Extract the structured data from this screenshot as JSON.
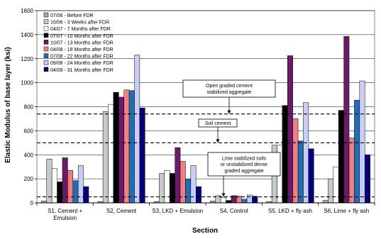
{
  "chart_data": {
    "type": "bar",
    "xlabel": "Section",
    "ylabel": "Elastic Modulus of base layer (ksi)",
    "ylim": [
      0,
      1600
    ],
    "yticks": [
      0,
      200,
      400,
      600,
      800,
      1000,
      1200,
      1400,
      1600
    ],
    "grid": "horizontal",
    "legend_position": "top-left",
    "categories": [
      "S1, Cement + Emulsion",
      "S2, Cement",
      "S3, LKD + Emulsion",
      "S4, Control",
      "S5, LKD + fly ash",
      "S6, Lime + fly ash"
    ],
    "category_label_lines": [
      [
        "S1, Cement +",
        "Emulsion"
      ],
      [
        "S2, Cement"
      ],
      [
        "S3, LKD + Emulsion"
      ],
      [
        "S4, Control"
      ],
      [
        "S5, LKD + fly ash"
      ],
      [
        "S6, Lime + fly ash"
      ]
    ],
    "series": [
      {
        "name": "07/06 - Before FDR",
        "color": "#a6a6a6",
        "values": [
          15,
          10,
          10,
          15,
          10,
          20
        ]
      },
      {
        "name": "10/06 - 3 Weeks after FDR",
        "color": "#c8c8c8",
        "values": [
          365,
          760,
          245,
          60,
          480,
          200
        ]
      },
      {
        "name": "04/07 - 7 Months after FDR",
        "color": "#ffffff",
        "values": [
          285,
          820,
          270,
          45,
          480,
          300
        ]
      },
      {
        "name": "07/07 - 10 Months after FDR",
        "color": "#000000",
        "values": [
          175,
          920,
          245,
          20,
          810,
          770
        ]
      },
      {
        "name": "10/07 - 13 Months after FDR",
        "color": "#6b1a6b",
        "values": [
          375,
          880,
          460,
          60,
          1225,
          1385
        ]
      },
      {
        "name": "04/08 - 19 Months after FDR",
        "color": "#f08080",
        "values": [
          270,
          940,
          345,
          55,
          700,
          540
        ]
      },
      {
        "name": "07/08 - 22 Months after FDR",
        "color": "#1f6fb8",
        "values": [
          185,
          935,
          195,
          30,
          515,
          855
        ]
      },
      {
        "name": "09/08 - 24 Months after FDR",
        "color": "#c9cdf5",
        "values": [
          310,
          1230,
          310,
          65,
          835,
          1015
        ]
      },
      {
        "name": "04/09 - 31 Months after FDR",
        "color": "#000080",
        "values": [
          135,
          790,
          135,
          55,
          450,
          400
        ]
      }
    ],
    "reference_lines": [
      {
        "value": 740,
        "label_lines": [
          "Open graded cement",
          "stabilized aggregate"
        ]
      },
      {
        "value": 500,
        "label_lines": [
          "Soil cement"
        ]
      },
      {
        "value": 50,
        "label_lines": [
          "Lime  stabilized soils",
          "or unstabilized dense",
          "graded aggregate"
        ]
      }
    ]
  }
}
